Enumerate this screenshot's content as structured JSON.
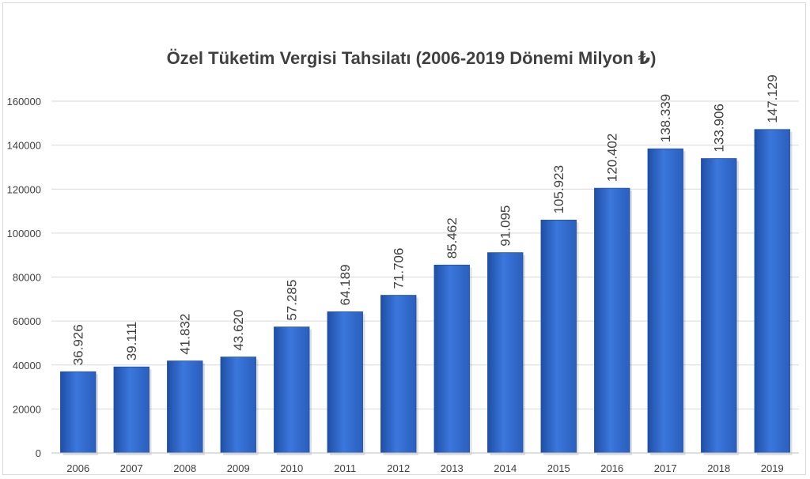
{
  "chart_data": {
    "type": "bar",
    "title": "Özel Tüketim Vergisi Tahsilatı (2006-2019 Dönemi Milyon ₺)",
    "xlabel": "",
    "ylabel": "",
    "categories": [
      "2006",
      "2007",
      "2008",
      "2009",
      "2010",
      "2011",
      "2012",
      "2013",
      "2014",
      "2015",
      "2016",
      "2017",
      "2018",
      "2019"
    ],
    "values": [
      36926,
      39111,
      41832,
      43620,
      57285,
      64189,
      71706,
      85462,
      91095,
      105923,
      120402,
      138339,
      133906,
      147129
    ],
    "data_labels": [
      "36.926",
      "39.111",
      "41.832",
      "43.620",
      "57.285",
      "64.189",
      "71.706",
      "85.462",
      "91.095",
      "105.923",
      "120.402",
      "138.339",
      "133.906",
      "147.129"
    ],
    "ylim": [
      0,
      160000
    ],
    "yticks": [
      0,
      20000,
      40000,
      60000,
      80000,
      100000,
      120000,
      140000,
      160000
    ],
    "ytick_labels": [
      "0",
      "20000",
      "40000",
      "60000",
      "80000",
      "100000",
      "120000",
      "140000",
      "160000"
    ],
    "grid": true,
    "legend": "none",
    "colors": {
      "bar": "#2f68c8",
      "bar_light": "#4d86e6",
      "bar_dark": "#1f4fa6",
      "grid": "#d9d9d9",
      "text": "#404040"
    }
  }
}
